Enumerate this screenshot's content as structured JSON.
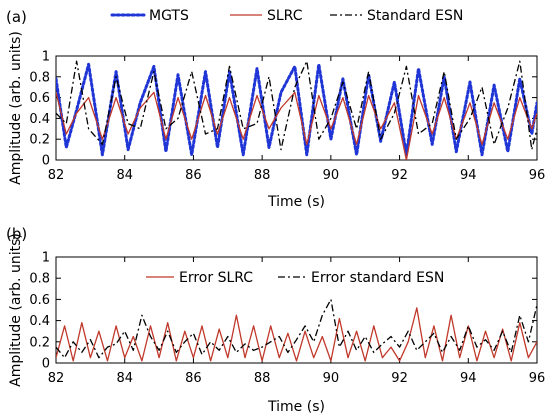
{
  "chart_data": [
    {
      "type": "line",
      "panel_label": "(a)",
      "xlabel": "Time (s)",
      "ylabel": "Amplitude (arb. units)",
      "xlim": [
        82,
        96
      ],
      "ylim": [
        0,
        1
      ],
      "xticks": [
        "82",
        "84",
        "86",
        "88",
        "90",
        "92",
        "94",
        "96"
      ],
      "yticks": [
        "0",
        "0.2",
        "0.4",
        "0.6",
        "0.8",
        "1"
      ],
      "legend_position": "top, outside plot area",
      "series": [
        {
          "name": "MGTS",
          "color": "#1f35d6",
          "style": "dotted",
          "x": [
            82.0,
            82.3,
            82.6,
            82.95,
            83.35,
            83.75,
            84.1,
            84.45,
            84.85,
            85.2,
            85.55,
            85.95,
            86.35,
            86.7,
            87.05,
            87.45,
            87.85,
            88.2,
            88.55,
            88.95,
            89.3,
            89.65,
            90.0,
            90.35,
            90.75,
            91.1,
            91.45,
            91.85,
            92.2,
            92.55,
            92.95,
            93.3,
            93.65,
            94.05,
            94.4,
            94.75,
            95.15,
            95.5,
            95.85,
            96.0
          ],
          "y": [
            0.78,
            0.12,
            0.48,
            0.92,
            0.05,
            0.85,
            0.1,
            0.55,
            0.9,
            0.08,
            0.82,
            0.05,
            0.85,
            0.12,
            0.85,
            0.05,
            0.88,
            0.12,
            0.65,
            0.9,
            0.05,
            0.92,
            0.2,
            0.78,
            0.05,
            0.82,
            0.18,
            0.75,
            0.05,
            0.88,
            0.15,
            0.8,
            0.08,
            0.75,
            0.05,
            0.72,
            0.08,
            0.78,
            0.25,
            0.55
          ]
        },
        {
          "name": "SLRC",
          "color": "#c0392b",
          "style": "solid",
          "x": [
            82.0,
            82.3,
            82.6,
            82.95,
            83.35,
            83.75,
            84.1,
            84.45,
            84.85,
            85.2,
            85.55,
            85.95,
            86.35,
            86.7,
            87.05,
            87.45,
            87.85,
            88.2,
            88.55,
            88.95,
            89.3,
            89.65,
            90.0,
            90.35,
            90.75,
            91.1,
            91.45,
            91.85,
            92.2,
            92.55,
            92.95,
            93.3,
            93.65,
            94.05,
            94.4,
            94.75,
            95.15,
            95.5,
            95.85,
            96.0
          ],
          "y": [
            0.65,
            0.25,
            0.45,
            0.6,
            0.2,
            0.6,
            0.25,
            0.5,
            0.65,
            0.2,
            0.6,
            0.2,
            0.62,
            0.25,
            0.6,
            0.2,
            0.62,
            0.3,
            0.5,
            0.65,
            0.15,
            0.62,
            0.3,
            0.6,
            0.15,
            0.62,
            0.3,
            0.55,
            0.0,
            0.62,
            0.25,
            0.6,
            0.2,
            0.55,
            0.15,
            0.55,
            0.2,
            0.6,
            0.3,
            0.45
          ]
        },
        {
          "name": "Standard ESN",
          "color": "#000000",
          "style": "dashdot",
          "x": [
            82.0,
            82.3,
            82.6,
            82.95,
            83.35,
            83.75,
            84.1,
            84.45,
            84.85,
            85.2,
            85.55,
            85.95,
            86.35,
            86.7,
            87.05,
            87.45,
            87.85,
            88.2,
            88.55,
            88.95,
            89.3,
            89.65,
            90.0,
            90.35,
            90.75,
            91.1,
            91.45,
            91.85,
            92.2,
            92.55,
            92.95,
            93.3,
            93.65,
            94.05,
            94.4,
            94.75,
            95.15,
            95.5,
            95.85,
            96.0
          ],
          "y": [
            0.45,
            0.35,
            0.95,
            0.3,
            0.15,
            0.8,
            0.35,
            0.3,
            0.85,
            0.3,
            0.4,
            0.85,
            0.25,
            0.3,
            0.9,
            0.3,
            0.35,
            0.8,
            0.1,
            0.7,
            0.95,
            0.2,
            0.4,
            0.75,
            0.3,
            0.85,
            0.2,
            0.45,
            0.9,
            0.25,
            0.35,
            0.85,
            0.2,
            0.4,
            0.7,
            0.15,
            0.5,
            0.95,
            0.1,
            0.3
          ]
        }
      ]
    },
    {
      "type": "line",
      "panel_label": "(b)",
      "xlabel": "Time (s)",
      "ylabel": "Amplitude (arb. units)",
      "xlim": [
        82,
        96
      ],
      "ylim": [
        0,
        1
      ],
      "xticks": [
        "82",
        "84",
        "86",
        "88",
        "90",
        "92",
        "94",
        "96"
      ],
      "yticks": [
        "0",
        "0.2",
        "0.4",
        "0.6",
        "0.8",
        "1"
      ],
      "legend_position": "top-center, inside plot area",
      "series": [
        {
          "name": "Error SLRC",
          "color": "#c0392b",
          "style": "solid",
          "x": [
            82.0,
            82.25,
            82.5,
            82.75,
            83.0,
            83.25,
            83.5,
            83.75,
            84.0,
            84.25,
            84.5,
            84.75,
            85.0,
            85.25,
            85.5,
            85.75,
            86.0,
            86.25,
            86.5,
            86.75,
            87.0,
            87.25,
            87.5,
            87.75,
            88.0,
            88.25,
            88.5,
            88.75,
            89.0,
            89.25,
            89.5,
            89.75,
            90.0,
            90.25,
            90.5,
            90.75,
            91.0,
            91.25,
            91.5,
            91.75,
            92.0,
            92.25,
            92.5,
            92.75,
            93.0,
            93.25,
            93.5,
            93.75,
            94.0,
            94.25,
            94.5,
            94.75,
            95.0,
            95.25,
            95.5,
            95.75,
            96.0
          ],
          "y": [
            0.05,
            0.35,
            0.02,
            0.38,
            0.05,
            0.3,
            0.02,
            0.35,
            0.05,
            0.25,
            0.02,
            0.35,
            0.05,
            0.38,
            0.02,
            0.3,
            0.05,
            0.35,
            0.02,
            0.32,
            0.05,
            0.45,
            0.05,
            0.35,
            0.02,
            0.35,
            0.05,
            0.28,
            0.02,
            0.3,
            0.05,
            0.25,
            0.02,
            0.42,
            0.05,
            0.3,
            0.02,
            0.35,
            0.05,
            0.15,
            0.02,
            0.2,
            0.52,
            0.05,
            0.35,
            0.02,
            0.45,
            0.05,
            0.35,
            0.02,
            0.3,
            0.05,
            0.32,
            0.02,
            0.38,
            0.05,
            0.2
          ]
        },
        {
          "name": "Error standard ESN",
          "color": "#000000",
          "style": "dashdot",
          "x": [
            82.0,
            82.25,
            82.5,
            82.75,
            83.0,
            83.25,
            83.5,
            83.75,
            84.0,
            84.25,
            84.5,
            84.75,
            85.0,
            85.25,
            85.5,
            85.75,
            86.0,
            86.25,
            86.5,
            86.75,
            87.0,
            87.25,
            87.5,
            87.75,
            88.0,
            88.25,
            88.5,
            88.75,
            89.0,
            89.25,
            89.5,
            89.75,
            90.0,
            90.25,
            90.5,
            90.75,
            91.0,
            91.25,
            91.5,
            91.75,
            92.0,
            92.25,
            92.5,
            92.75,
            93.0,
            93.25,
            93.5,
            93.75,
            94.0,
            94.25,
            94.5,
            94.75,
            95.0,
            95.25,
            95.5,
            95.75,
            96.0
          ],
          "y": [
            0.15,
            0.05,
            0.2,
            0.1,
            0.22,
            0.05,
            0.15,
            0.18,
            0.3,
            0.12,
            0.45,
            0.25,
            0.12,
            0.3,
            0.1,
            0.2,
            0.28,
            0.08,
            0.2,
            0.12,
            0.25,
            0.1,
            0.18,
            0.12,
            0.15,
            0.2,
            0.25,
            0.1,
            0.22,
            0.35,
            0.2,
            0.45,
            0.6,
            0.15,
            0.3,
            0.12,
            0.25,
            0.1,
            0.18,
            0.25,
            0.15,
            0.3,
            0.12,
            0.2,
            0.28,
            0.1,
            0.25,
            0.12,
            0.35,
            0.15,
            0.22,
            0.12,
            0.3,
            0.1,
            0.45,
            0.2,
            0.55
          ]
        }
      ]
    }
  ]
}
